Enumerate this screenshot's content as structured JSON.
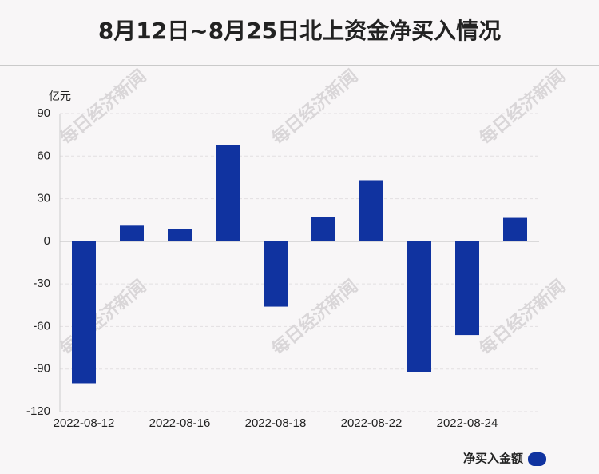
{
  "chart_data": {
    "type": "bar",
    "title": "8月12日~8月25日北上资金净买入情况",
    "y_axis_label": "亿元",
    "watermark": "每日经济新闻",
    "categories": [
      "2022-08-12",
      null,
      "2022-08-16",
      null,
      "2022-08-18",
      null,
      "2022-08-22",
      null,
      "2022-08-24",
      null
    ],
    "series": [
      {
        "name": "净买入金额",
        "color": "#1033a0",
        "values": [
          -100,
          11,
          8.5,
          68,
          -46,
          17,
          43,
          -92,
          -66,
          16.5
        ]
      }
    ],
    "ylim": [
      -120,
      90
    ],
    "yticks": [
      -120,
      -90,
      -60,
      -30,
      0,
      30,
      60,
      90
    ],
    "grid": true
  }
}
